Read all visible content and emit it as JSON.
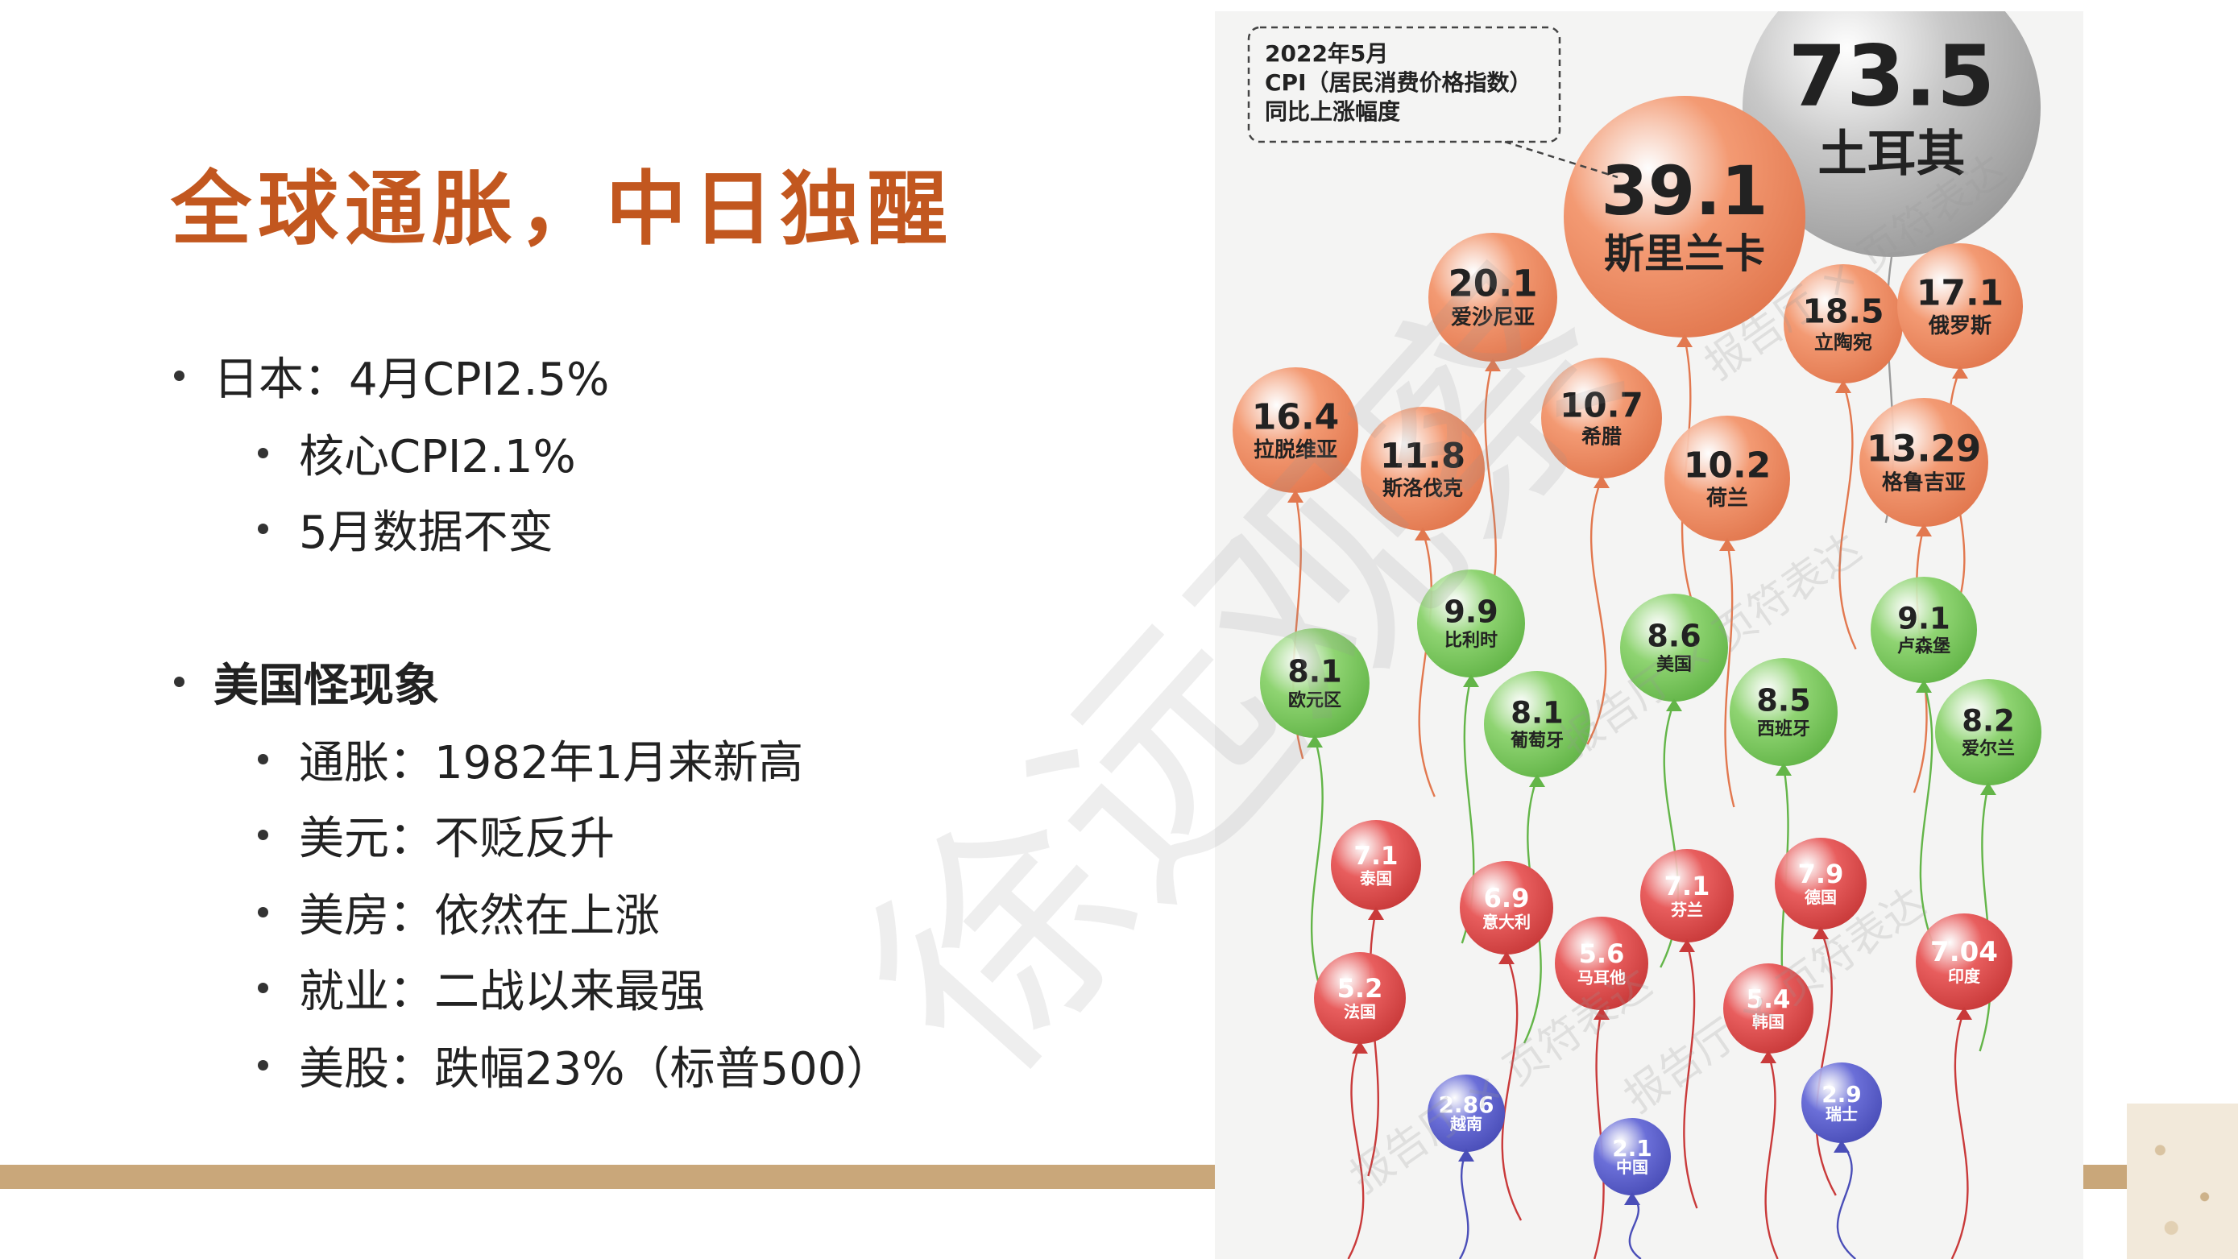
{
  "slide": {
    "title": "全球通胀，中日独醒",
    "bullets": [
      {
        "level": 1,
        "text": "日本：4月CPI2.5%",
        "bold": false
      },
      {
        "level": 2,
        "text": "核心CPI2.1%",
        "bold": false
      },
      {
        "level": 2,
        "text": "5月数据不变",
        "bold": false
      },
      {
        "level": 1,
        "text": "美国怪现象",
        "bold": true
      },
      {
        "level": 2,
        "text": "通胀：1982年1月来新高",
        "bold": false
      },
      {
        "level": 2,
        "text": "美元：不贬反升",
        "bold": false
      },
      {
        "level": 2,
        "text": "美房：依然在上涨",
        "bold": false
      },
      {
        "level": 2,
        "text": "就业：二战以来最强",
        "bold": false
      },
      {
        "level": 2,
        "text": "美股：跌幅23%（标普500）",
        "bold": false
      }
    ]
  },
  "watermark": {
    "main": "徐远观察",
    "small_1": "报告厅 × 页符表达",
    "small_2": "报告厅 × 页符表达",
    "small_3": "报告厅 × 页符表达",
    "small_4": "报告厅 × 页符表达"
  },
  "colors": {
    "title": "#c2571f",
    "band": "#c9a77a",
    "orange": "#f39a73",
    "green": "#8fd472",
    "red": "#e85e5e",
    "blue": "#6b6fd8",
    "gray": "#c8c8c8"
  },
  "chart_data": {
    "type": "bubble",
    "caption_lines": [
      "2022年5月",
      "CPI（居民消费价格指数）",
      "同比上涨幅度"
    ],
    "series": [
      {
        "country": "土耳其",
        "value": "73.5",
        "group": "gray"
      },
      {
        "country": "斯里兰卡",
        "value": "39.1",
        "group": "orange"
      },
      {
        "country": "爱沙尼亚",
        "value": "20.1",
        "group": "orange"
      },
      {
        "country": "立陶宛",
        "value": "18.5",
        "group": "orange"
      },
      {
        "country": "俄罗斯",
        "value": "17.1",
        "group": "orange"
      },
      {
        "country": "拉脱维亚",
        "value": "16.4",
        "group": "orange"
      },
      {
        "country": "格鲁吉亚",
        "value": "13.29",
        "group": "orange"
      },
      {
        "country": "斯洛伐克",
        "value": "11.8",
        "group": "orange"
      },
      {
        "country": "希腊",
        "value": "10.7",
        "group": "orange"
      },
      {
        "country": "荷兰",
        "value": "10.2",
        "group": "orange"
      },
      {
        "country": "比利时",
        "value": "9.9",
        "group": "green"
      },
      {
        "country": "卢森堡",
        "value": "9.1",
        "group": "green"
      },
      {
        "country": "美国",
        "value": "8.6",
        "group": "green"
      },
      {
        "country": "西班牙",
        "value": "8.5",
        "group": "green"
      },
      {
        "country": "爱尔兰",
        "value": "8.2",
        "group": "green"
      },
      {
        "country": "欧元区",
        "value": "8.1",
        "group": "green"
      },
      {
        "country": "葡萄牙",
        "value": "8.1",
        "group": "green"
      },
      {
        "country": "德国",
        "value": "7.9",
        "group": "red"
      },
      {
        "country": "泰国",
        "value": "7.1",
        "group": "red"
      },
      {
        "country": "芬兰",
        "value": "7.1",
        "group": "red"
      },
      {
        "country": "印度",
        "value": "7.04",
        "group": "red"
      },
      {
        "country": "意大利",
        "value": "6.9",
        "group": "red"
      },
      {
        "country": "马耳他",
        "value": "5.6",
        "group": "red"
      },
      {
        "country": "韩国",
        "value": "5.4",
        "group": "red"
      },
      {
        "country": "法国",
        "value": "5.2",
        "group": "red"
      },
      {
        "country": "瑞士",
        "value": "2.9",
        "group": "blue"
      },
      {
        "country": "越南",
        "value": "2.86",
        "group": "blue"
      },
      {
        "country": "中国",
        "value": "2.1",
        "group": "blue"
      }
    ]
  }
}
